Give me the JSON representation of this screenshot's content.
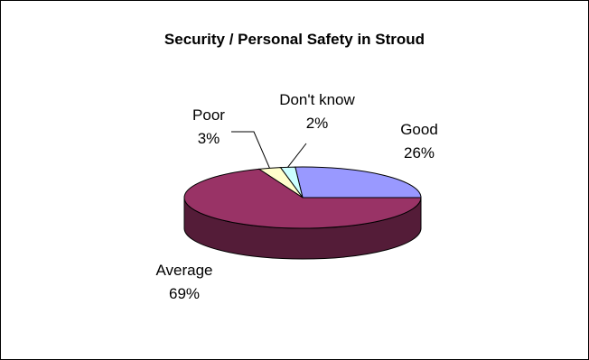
{
  "chart_data": {
    "type": "pie",
    "style": "3d",
    "title": "Security / Personal Safety in Stroud",
    "slices": [
      {
        "label": "Good",
        "value": 26,
        "value_text": "26%",
        "color": "#9999ff"
      },
      {
        "label": "Average",
        "value": 69,
        "value_text": "69%",
        "color": "#993366"
      },
      {
        "label": "Poor",
        "value": 3,
        "value_text": "3%",
        "color": "#ffffcc"
      },
      {
        "label": "Don't know",
        "value": 2,
        "value_text": "2%",
        "color": "#ccffff"
      }
    ],
    "legend": false
  }
}
